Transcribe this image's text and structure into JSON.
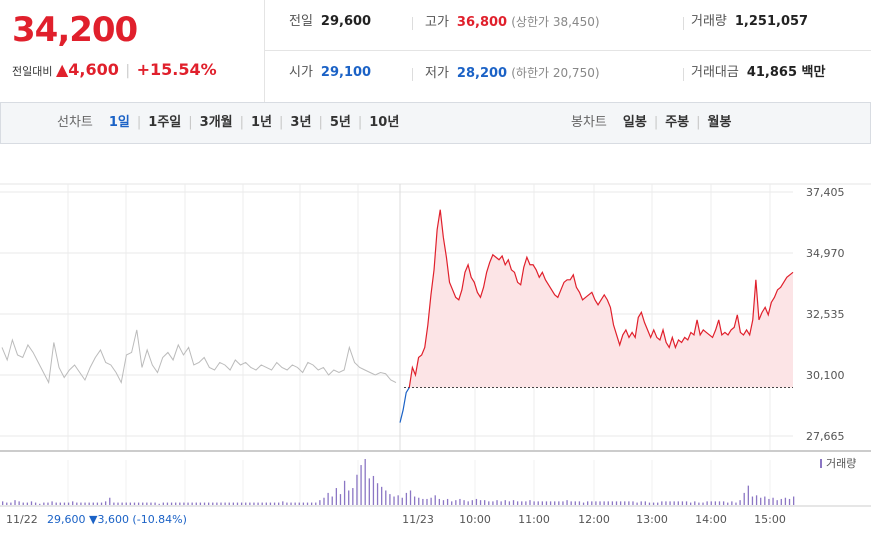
{
  "header": {
    "price": "34,200",
    "change_label": "전일대비",
    "change_arrow": "▲",
    "change_value": "4,600",
    "change_pct": "+15.54%",
    "row1": {
      "prev_label": "전일",
      "prev_value": "29,600",
      "high_label": "고가",
      "high_value": "36,800",
      "upper_limit": "(상한가 38,450)",
      "volume_label": "거래량",
      "volume_value": "1,251,057"
    },
    "row2": {
      "open_label": "시가",
      "open_value": "29,100",
      "low_label": "저가",
      "low_value": "28,200",
      "lower_limit": "(하한가 20,750)",
      "amount_label": "거래대금",
      "amount_value": "41,865 백만"
    }
  },
  "tabs": {
    "line_label": "선차트",
    "line_items": [
      "1일",
      "1주일",
      "3개월",
      "1년",
      "3년",
      "5년",
      "10년"
    ],
    "active": "1일",
    "candle_label": "봉차트",
    "candle_items": [
      "일봉",
      "주봉",
      "월봉"
    ]
  },
  "footer": {
    "prev_date": "11/22",
    "prev_close_text": "29,600 ▼3,600 (-10.84%)"
  },
  "colors": {
    "up": "#e0202c",
    "down": "#1b62c6",
    "prev_line": "#bbbbbb",
    "volume": "#8b76c4",
    "fill": "#fce4e6"
  },
  "chart_data": {
    "type": "line",
    "y_ticks": [
      "37,405",
      "34,970",
      "32,535",
      "30,100",
      "27,665"
    ],
    "ylim": [
      27665,
      37405
    ],
    "x_tick_labels": [
      "11/23",
      "10:00",
      "11:00",
      "12:00",
      "13:00",
      "14:00",
      "15:00"
    ],
    "baseline": 29600,
    "volume_legend": "거래량",
    "prev_day_series": [
      31200,
      30700,
      31500,
      30900,
      30800,
      31300,
      31000,
      30600,
      30200,
      29800,
      31400,
      30400,
      30000,
      30300,
      30500,
      30200,
      29900,
      30400,
      30800,
      31100,
      30600,
      30500,
      30200,
      29800,
      30900,
      31000,
      31900,
      30400,
      31100,
      30500,
      30200,
      30800,
      31000,
      30700,
      31300,
      30900,
      31200,
      30500,
      30600,
      30800,
      30400,
      30300,
      30600,
      30500,
      30300,
      30700,
      30500,
      30600,
      30400,
      30300,
      30500,
      30400,
      30300,
      30600,
      30400,
      30300,
      30500,
      30400,
      30200,
      30600,
      30500,
      30300,
      30400,
      30100,
      30300,
      30200,
      30300,
      31200,
      30600,
      30400,
      30300,
      30200,
      30100,
      30200,
      30150,
      29900,
      29800
    ],
    "today_series": [
      28200,
      28700,
      29400,
      29600,
      30400,
      30100,
      30800,
      30900,
      31200,
      32100,
      33300,
      34300,
      35900,
      36700,
      35600,
      34800,
      33800,
      33500,
      33200,
      33100,
      33500,
      34200,
      34500,
      34000,
      33800,
      33400,
      33200,
      33600,
      34200,
      34600,
      34900,
      34800,
      34700,
      34850,
      34500,
      34700,
      34300,
      34200,
      33800,
      33700,
      34400,
      34800,
      34500,
      34500,
      34300,
      34000,
      34200,
      33900,
      33700,
      33500,
      33300,
      33200,
      33500,
      33800,
      33900,
      33900,
      34100,
      33600,
      33400,
      33100,
      33200,
      33300,
      33400,
      33100,
      32900,
      33100,
      33300,
      33100,
      32800,
      32100,
      31700,
      31300,
      31700,
      31900,
      31600,
      31800,
      31600,
      32400,
      32600,
      32200,
      31900,
      31600,
      31900,
      31600,
      31500,
      31900,
      31400,
      31200,
      31600,
      31200,
      31500,
      31400,
      31600,
      31500,
      31800,
      31700,
      32300,
      31700,
      31900,
      31800,
      31700,
      31600,
      31900,
      32300,
      31700,
      31800,
      31700,
      31900,
      32000,
      32500,
      31800,
      31700,
      31900,
      31700,
      32300,
      33900,
      32300,
      32600,
      32800,
      32500,
      33000,
      33200,
      33500,
      33600,
      33800,
      34000,
      34100,
      34200
    ],
    "volume_series": [
      3,
      2,
      2,
      4,
      3,
      2,
      2,
      3,
      2,
      1,
      2,
      2,
      3,
      2,
      2,
      2,
      2,
      3,
      2,
      2,
      2,
      2,
      2,
      2,
      2,
      3,
      6,
      2,
      2,
      2,
      2,
      2,
      2,
      2,
      2,
      2,
      2,
      2,
      1,
      2,
      2,
      2,
      2,
      2,
      2,
      2,
      2,
      2,
      2,
      2,
      2,
      2,
      2,
      2,
      2,
      2,
      2,
      2,
      2,
      2,
      2,
      2,
      2,
      2,
      2,
      2,
      2,
      2,
      3,
      2,
      2,
      2,
      2,
      2,
      2,
      2,
      2,
      4,
      6,
      10,
      7,
      14,
      9,
      20,
      12,
      14,
      25,
      33,
      38,
      22,
      24,
      18,
      15,
      12,
      9,
      7,
      8,
      6,
      10,
      12,
      7,
      6,
      5,
      5,
      6,
      8,
      5,
      4,
      5,
      3,
      4,
      5,
      4,
      3,
      4,
      5,
      4,
      4,
      3,
      3,
      4,
      3,
      4,
      3,
      4,
      3,
      3,
      3,
      4,
      3,
      3,
      3,
      3,
      3,
      3,
      3,
      3,
      4,
      3,
      3,
      3,
      2,
      3,
      3,
      3,
      3,
      3,
      3,
      3,
      3,
      3,
      3,
      3,
      3,
      2,
      3,
      3,
      2,
      2,
      2,
      3,
      3,
      3,
      3,
      3,
      3,
      3,
      2,
      3,
      2,
      2,
      3,
      3,
      3,
      3,
      3,
      2,
      3,
      2,
      4,
      10,
      16,
      7,
      8,
      6,
      7,
      5,
      6,
      4,
      5,
      6,
      5,
      7
    ]
  }
}
